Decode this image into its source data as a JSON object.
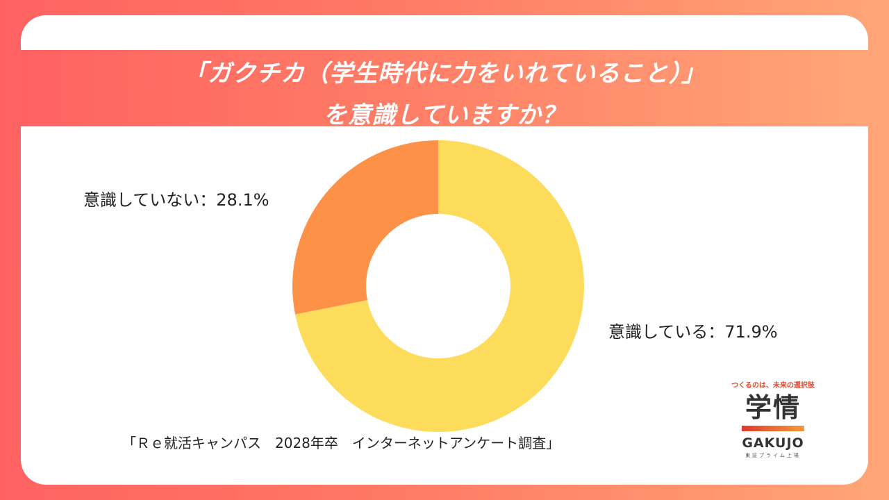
{
  "title": {
    "line1": "「ガクチカ（学生時代に力をいれていること）」",
    "line2": "を意識していますか？"
  },
  "labels": {
    "not_conscious": "意識していない：28.1%",
    "conscious": "意識している：71.9%"
  },
  "footnote": "「Ｒｅ就活キャンパス　2028年卒　インターネットアンケート調査」",
  "logo": {
    "tagline": "つくるのは、未来の選択肢",
    "kanji": "学情",
    "english": "GAKUJO",
    "sub": "東証プライム上場"
  },
  "colors": {
    "conscious": "#fddc5c",
    "not_conscious": "#fd9148",
    "accent_start": "#ff6262",
    "accent_end": "#ffa678"
  },
  "chart_data": {
    "type": "pie",
    "variant": "donut",
    "title": "「ガクチカ（学生時代に力をいれていること）」を意識していますか？",
    "categories": [
      "意識している",
      "意識していない"
    ],
    "values": [
      71.9,
      28.1
    ],
    "unit": "%",
    "colors": [
      "#fddc5c",
      "#fd9148"
    ],
    "start_angle": "12 o'clock, clockwise",
    "legend": "none (direct labels)",
    "source": "「Ｒｅ就活キャンパス　2028年卒　インターネットアンケート調査」"
  }
}
